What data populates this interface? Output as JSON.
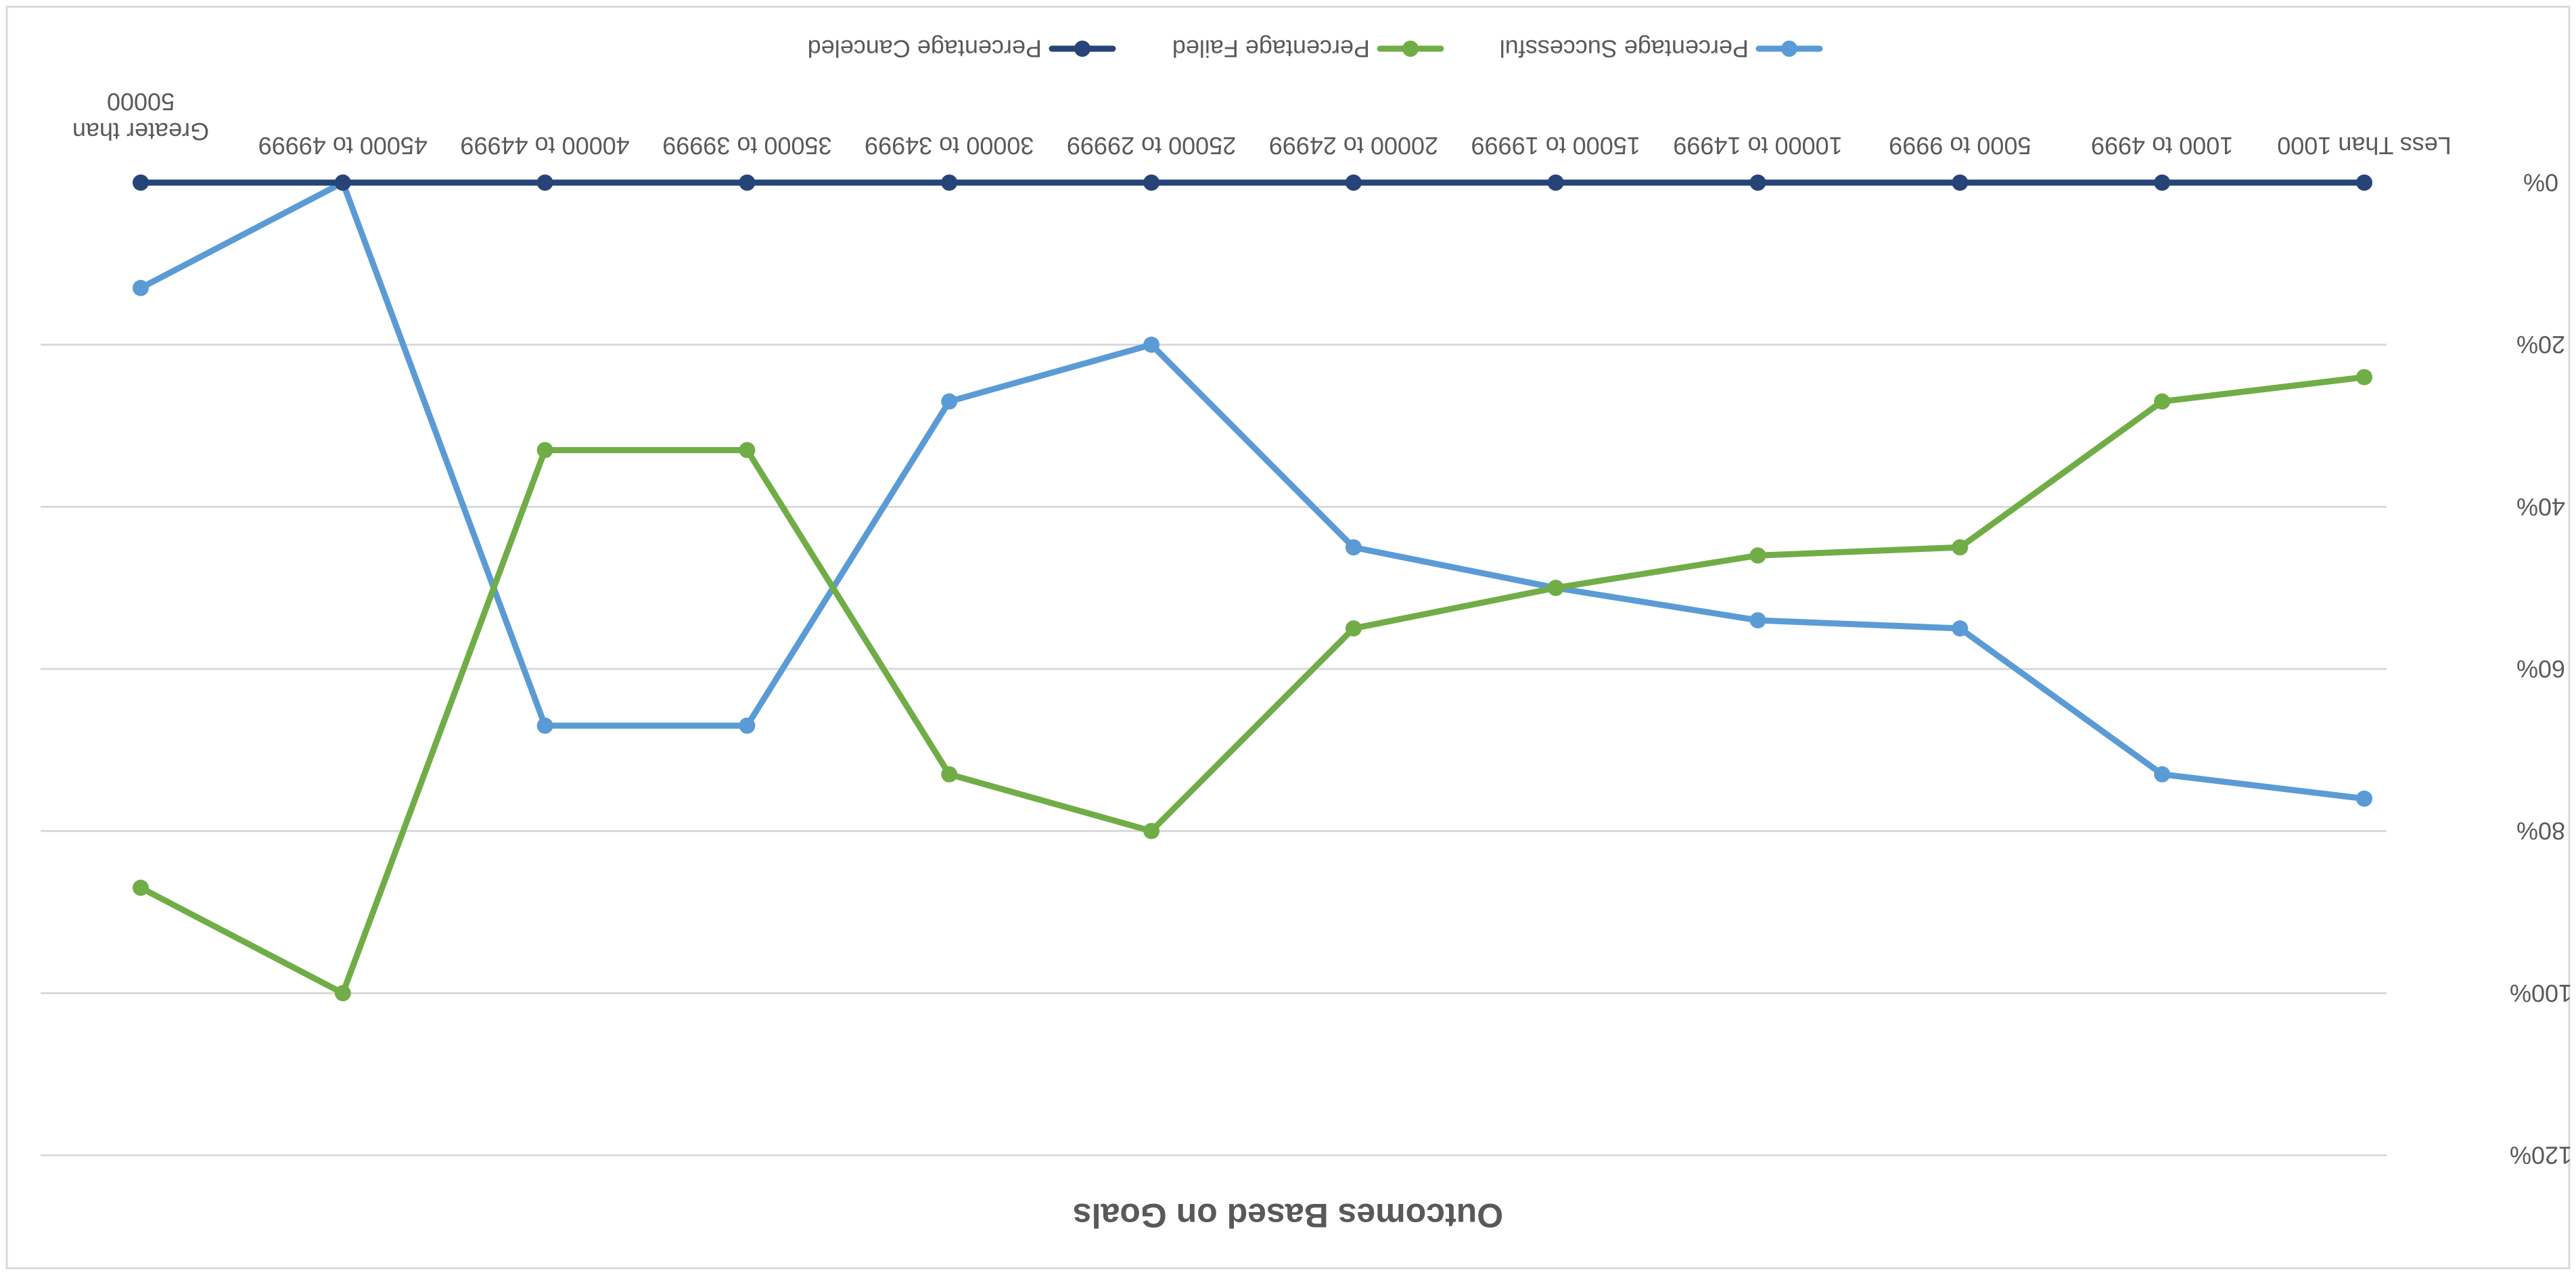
{
  "chart_data": {
    "type": "line",
    "title": "Outcomes Based on Goals",
    "categories": [
      "Less Than 1000",
      "1000 to 4999",
      "5000 to 9999",
      "10000 to 14999",
      "15000 to 19999",
      "20000 to 24999",
      "25000 to 29999",
      "30000 to 34999",
      "35000 to 39999",
      "40000 to 44999",
      "45000 to 49999",
      "Greater than 50000"
    ],
    "category_lines": [
      [
        "Less Than 1000"
      ],
      [
        "1000 to 4999"
      ],
      [
        "5000 to 9999"
      ],
      [
        "10000 to 14999"
      ],
      [
        "15000 to 19999"
      ],
      [
        "20000 to 24999"
      ],
      [
        "25000 to 29999"
      ],
      [
        "30000 to 34999"
      ],
      [
        "35000 to 39999"
      ],
      [
        "40000 to 44999"
      ],
      [
        "45000 to 49999"
      ],
      [
        "Greater than",
        "50000"
      ]
    ],
    "series": [
      {
        "name": "Percentage Successful",
        "color": "#5B9BD5",
        "values": [
          76,
          73,
          55,
          54,
          50,
          45,
          20,
          27,
          67,
          67,
          0,
          13
        ]
      },
      {
        "name": "Percentage Failed",
        "color": "#70AD47",
        "values": [
          24,
          27,
          45,
          46,
          50,
          55,
          80,
          73,
          33,
          33,
          100,
          87
        ]
      },
      {
        "name": "Percentage Canceled",
        "color": "#264478",
        "values": [
          0,
          0,
          0,
          0,
          0,
          0,
          0,
          0,
          0,
          0,
          0,
          0
        ]
      }
    ],
    "ylim": [
      0,
      120
    ],
    "yticks": [
      "0%",
      "20%",
      "40%",
      "60%",
      "80%",
      "100%",
      "120%"
    ],
    "xlabel": "",
    "ylabel": "",
    "grid": true,
    "legend": "top",
    "orientation": "image rotated 180 degrees"
  }
}
